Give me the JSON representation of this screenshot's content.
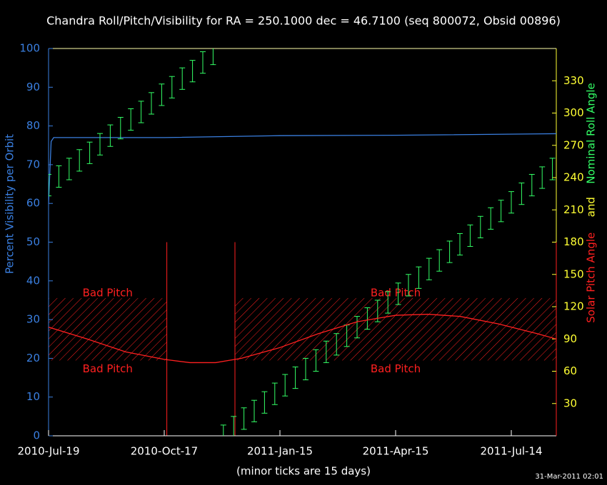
{
  "chart_data": {
    "type": "line",
    "title": "Chandra Roll/Pitch/Visibility for RA = 250.1000 dec = 46.7100 (seq 800072, Obsid 00896)",
    "xlabel": "(minor ticks are 15 days)",
    "ylabel": "Percent Visibility per Orbit",
    "y2label": [
      "Nominal Roll Angle",
      "and",
      "Solar Pitch Angle"
    ],
    "y2label_colors": [
      "#33ff66",
      "#ffff33",
      "#ff2020"
    ],
    "timestamp": "31-Mar-2011 02:01",
    "xlim": [
      "2010-Jul-19",
      "2011-Aug-18"
    ],
    "xticks": [
      "2010-Jul-19",
      "2010-Oct-17",
      "2011-Jan-15",
      "2011-Apr-15",
      "2011-Jul-14"
    ],
    "ylim": [
      0,
      100
    ],
    "yticks": [
      0,
      10,
      20,
      30,
      40,
      50,
      60,
      70,
      80,
      90,
      100
    ],
    "y2lim": [
      0,
      360
    ],
    "y2ticks": [
      30,
      60,
      90,
      120,
      150,
      180,
      210,
      240,
      270,
      300,
      330
    ],
    "series": [
      {
        "color": "#3a7fe0",
        "x": [
          "2010-Jul-19",
          "2010-Jul-21",
          "2010-Jul-23",
          "2010-Oct-17",
          "2011-Jan-15",
          "2011-Apr-15",
          "2011-Aug-18"
        ],
        "values": [
          60,
          76,
          77,
          77,
          77.5,
          77.6,
          78
        ]
      },
      {
        "color": "#33ff66",
        "axis": "y2",
        "style": "errorbar",
        "error": 10,
        "x": [
          "2010-Jul-19",
          "2010-Jul-27",
          "2010-Aug-04",
          "2010-Aug-12",
          "2010-Aug-20",
          "2010-Aug-28",
          "2010-Sep-05",
          "2010-Sep-13",
          "2010-Sep-21",
          "2010-Sep-29",
          "2010-Oct-07",
          "2010-Oct-15",
          "2010-Oct-23",
          "2010-Oct-31",
          "2010-Nov-08",
          "2010-Nov-16",
          "2010-Nov-24",
          "2010-Dec-02",
          "2010-Dec-10",
          "2010-Dec-18",
          "2010-Dec-26",
          "2011-Jan-03",
          "2011-Jan-11",
          "2011-Jan-19",
          "2011-Jan-27",
          "2011-Feb-04",
          "2011-Feb-12",
          "2011-Feb-20",
          "2011-Feb-28",
          "2011-Mar-08",
          "2011-Mar-16",
          "2011-Mar-24",
          "2011-Apr-01",
          "2011-Apr-09",
          "2011-Apr-17",
          "2011-Apr-25",
          "2011-May-03",
          "2011-May-11",
          "2011-May-19",
          "2011-May-27",
          "2011-Jun-04",
          "2011-Jun-12",
          "2011-Jun-20",
          "2011-Jun-28",
          "2011-Jul-06",
          "2011-Jul-14",
          "2011-Jul-22",
          "2011-Jul-30",
          "2011-Aug-07",
          "2011-Aug-15"
        ],
        "values": [
          233,
          241,
          248,
          256,
          263,
          271,
          279,
          286,
          294,
          301,
          309,
          317,
          324,
          332,
          339,
          347,
          355,
          0,
          8,
          16,
          23,
          31,
          39,
          47,
          54,
          62,
          70,
          78,
          85,
          93,
          101,
          109,
          116,
          124,
          132,
          140,
          147,
          155,
          163,
          171,
          178,
          186,
          194,
          202,
          209,
          217,
          225,
          233,
          240,
          248
        ]
      },
      {
        "color": "#ff2020",
        "axis": "y2",
        "x": [
          "2010-Jul-19",
          "2010-Aug-18",
          "2010-Sep-17",
          "2010-Oct-17",
          "2010-Nov-06",
          "2010-Nov-26",
          "2010-Dec-16",
          "2011-Jan-15",
          "2011-Feb-14",
          "2011-Mar-16",
          "2011-Apr-15",
          "2011-May-10",
          "2011-Jun-04",
          "2011-Jul-04",
          "2011-Aug-03",
          "2011-Aug-18"
        ],
        "values": [
          101,
          90,
          78,
          71,
          68,
          68,
          72,
          82,
          95,
          106,
          112,
          113,
          111,
          104,
          95,
          90
        ]
      }
    ],
    "bad_pitch": {
      "label": "Bad Pitch",
      "color": "#ff2020",
      "range": [
        70,
        128
      ],
      "spans": [
        [
          "2010-Jul-19",
          "2010-Oct-19"
        ],
        [
          "2010-Dec-11",
          "2011-Aug-18"
        ]
      ]
    },
    "markers": [
      "2010-Oct-19",
      "2010-Dec-11"
    ],
    "marker_top": 180
  }
}
